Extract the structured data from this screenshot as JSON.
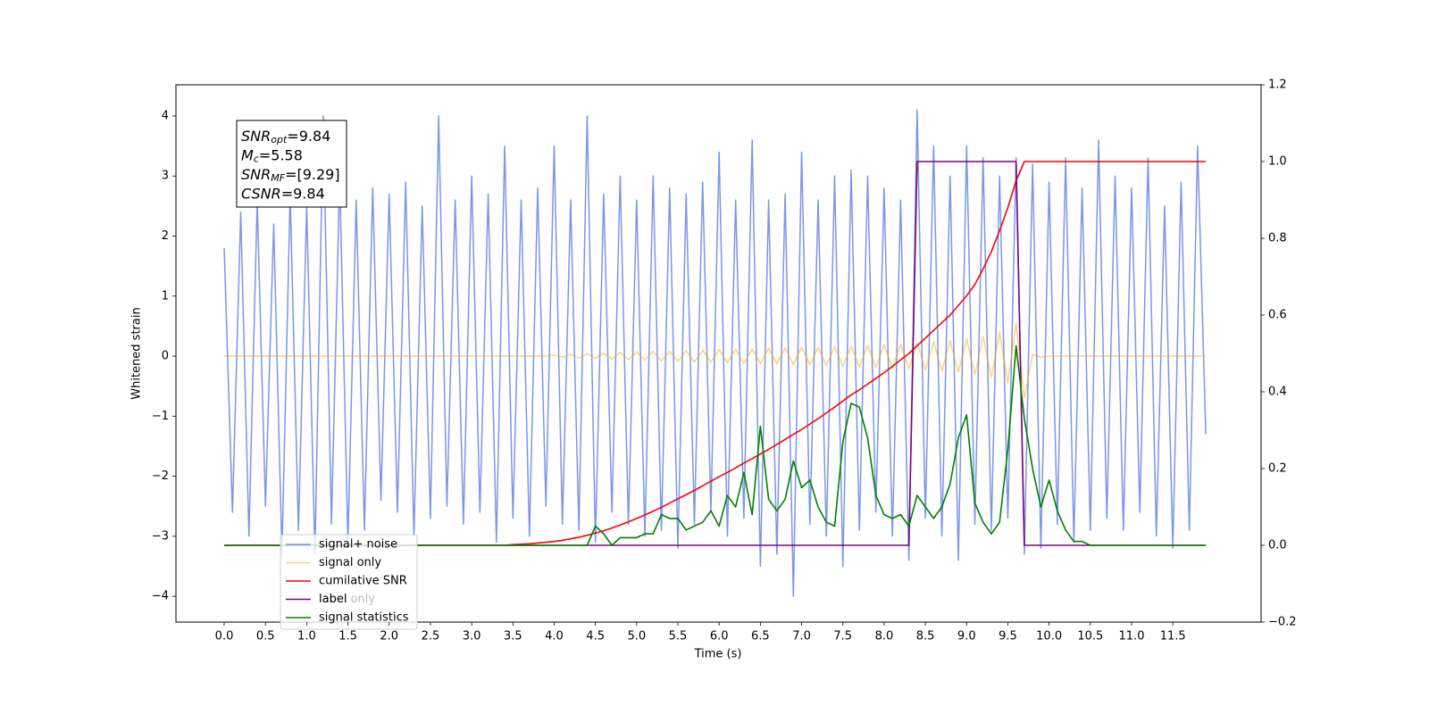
{
  "chart_data": {
    "type": "line",
    "xlabel": "Time (s)",
    "ylabel": "Whitened strain",
    "xlim": [
      -0.585,
      12.57
    ],
    "ylim": [
      -4.43,
      4.52
    ],
    "y2lim": [
      -0.2,
      1.2
    ],
    "xticks": [
      {
        "value": 0,
        "label": "0.0"
      },
      0.5,
      {
        "value": 1,
        "label": "1.0"
      },
      1.5,
      {
        "value": 2,
        "label": "2.0"
      },
      2.5,
      {
        "value": 3,
        "label": "3.0"
      },
      3.5,
      {
        "value": 4,
        "label": "4.0"
      },
      4.5,
      {
        "value": 5,
        "label": "5.0"
      },
      5.5,
      {
        "value": 6,
        "label": "6.0"
      },
      6.5,
      {
        "value": 7,
        "label": "7.0"
      },
      7.5,
      {
        "value": 8,
        "label": "8.0"
      },
      8.5,
      {
        "value": 9,
        "label": "9.0"
      },
      9.5,
      {
        "value": 10,
        "label": "10.0"
      },
      10.5,
      {
        "value": 11,
        "label": "11.0"
      },
      11.5
    ],
    "yticks": [
      {
        "value": -4,
        "label": "−4"
      },
      {
        "value": -3,
        "label": "−3"
      },
      {
        "value": -2,
        "label": "−2"
      },
      {
        "value": -1,
        "label": "−1"
      },
      0,
      1,
      2,
      3,
      4
    ],
    "y2ticks": [
      {
        "value": -0.2,
        "label": "−0.2"
      },
      {
        "value": 0,
        "label": "0.0"
      },
      0.2,
      0.4,
      0.6,
      0.8,
      {
        "value": 1,
        "label": "1.0"
      },
      1.2
    ],
    "legend": "lower left",
    "legend_hidden_entry": "label only",
    "annotation_lines": [
      {
        "name": "SNR",
        "sub": "opt",
        "text": "=9.84"
      },
      {
        "name": "M",
        "sub": "c",
        "text": "=5.58"
      },
      {
        "name": "SNR",
        "sub": "MF",
        "text": "=[9.29]"
      },
      {
        "name": "CSNR",
        "text": "=9.84"
      }
    ],
    "x": [
      0,
      0.1,
      0.2,
      0.3,
      0.4,
      0.5,
      0.6,
      0.7,
      0.8,
      0.9,
      1,
      1.1,
      1.2,
      1.3,
      1.4,
      1.5,
      1.6,
      1.7,
      1.8,
      1.9,
      2,
      2.1,
      2.2,
      2.3,
      2.4,
      2.5,
      2.6,
      2.7,
      2.8,
      2.9,
      3,
      3.1,
      3.2,
      3.3,
      3.4,
      3.5,
      3.6,
      3.7,
      3.8,
      3.9,
      4,
      4.1,
      4.2,
      4.3,
      4.4,
      4.5,
      4.6,
      4.7,
      4.8,
      4.9,
      5,
      5.1,
      5.2,
      5.3,
      5.4,
      5.5,
      5.6,
      5.7,
      5.8,
      5.9,
      6,
      6.1,
      6.2,
      6.3,
      6.4,
      6.5,
      6.6,
      6.7,
      6.8,
      6.9,
      7,
      7.1,
      7.2,
      7.3,
      7.4,
      7.5,
      7.6,
      7.7,
      7.8,
      7.9,
      8,
      8.1,
      8.2,
      8.3,
      8.4,
      8.5,
      8.6,
      8.7,
      8.8,
      8.9,
      9,
      9.1,
      9.2,
      9.3,
      9.4,
      9.5,
      9.6,
      9.7,
      9.8,
      9.9,
      10,
      10.1,
      10.2,
      10.3,
      10.4,
      10.5,
      10.6,
      10.7,
      10.8,
      10.9,
      11,
      11.1,
      11.2,
      11.3,
      11.4,
      11.5,
      11.6,
      11.7,
      11.8,
      11.9
    ],
    "series": [
      {
        "name": "signal+ noise",
        "color": "#4169e1",
        "alpha": 0.7,
        "axis": "y",
        "values": [
          1.8,
          -2.6,
          2.4,
          -3.0,
          2.6,
          -2.5,
          2.2,
          -3.3,
          2.7,
          -2.9,
          2.5,
          -3.3,
          4.0,
          -2.8,
          3.0,
          -3.1,
          2.6,
          -2.9,
          2.8,
          -2.4,
          2.7,
          -2.6,
          2.9,
          -3.0,
          2.5,
          -2.7,
          4.0,
          -2.5,
          2.6,
          -2.8,
          3.0,
          -2.6,
          2.7,
          -3.1,
          3.5,
          -2.7,
          2.6,
          -3.0,
          2.8,
          -2.5,
          3.5,
          -2.8,
          2.6,
          -2.9,
          4.0,
          -3.1,
          2.7,
          -2.6,
          3.0,
          -2.8,
          2.6,
          -3.0,
          3.0,
          -2.9,
          2.8,
          -3.2,
          2.7,
          -2.8,
          2.9,
          -2.6,
          3.4,
          -3.0,
          2.6,
          -2.7,
          3.6,
          -3.5,
          2.6,
          -3.3,
          2.7,
          -4.0,
          3.4,
          -2.8,
          2.6,
          -3.0,
          3.0,
          -3.5,
          3.1,
          -2.9,
          3.0,
          -2.6,
          2.8,
          -3.0,
          2.6,
          -3.4,
          4.1,
          -2.7,
          3.5,
          -3.0,
          3.0,
          -3.4,
          3.5,
          -2.8,
          3.3,
          -2.9,
          3.0,
          -2.7,
          3.3,
          -3.3,
          3.2,
          -3.2,
          2.9,
          -2.8,
          3.3,
          -3.1,
          2.8,
          -2.9,
          3.6,
          -2.7,
          3.0,
          -2.9,
          2.8,
          -2.6,
          3.3,
          -3.0,
          2.5,
          -3.2,
          2.9,
          -2.9,
          3.5,
          -1.3
        ]
      },
      {
        "name": "signal only",
        "color": "#ffa500",
        "alpha": 0.5,
        "axis": "y",
        "values": [
          0,
          0,
          0,
          0,
          0,
          0,
          0,
          0,
          0,
          0,
          0,
          0,
          0,
          0,
          0,
          0,
          0,
          0,
          0,
          0,
          0,
          0,
          0,
          0,
          0,
          0,
          0,
          0,
          0,
          0,
          0,
          0,
          0,
          0,
          0,
          0,
          0,
          0,
          0,
          0,
          0.02,
          -0.02,
          0.03,
          -0.03,
          0.04,
          -0.04,
          0.05,
          -0.05,
          0.06,
          -0.06,
          0.07,
          -0.07,
          0.08,
          -0.08,
          0.08,
          -0.09,
          0.09,
          -0.1,
          0.1,
          -0.1,
          0.11,
          -0.11,
          0.12,
          -0.12,
          0.12,
          -0.13,
          0.13,
          -0.13,
          0.14,
          -0.14,
          0.15,
          -0.15,
          0.15,
          -0.16,
          0.16,
          -0.17,
          0.17,
          -0.18,
          0.18,
          -0.19,
          0.19,
          -0.2,
          0.2,
          -0.21,
          0.22,
          -0.23,
          0.24,
          -0.25,
          0.26,
          -0.27,
          0.29,
          -0.31,
          0.33,
          -0.36,
          0.4,
          -0.45,
          0.55,
          -0.7,
          0.03,
          -0.02,
          0,
          0,
          0,
          0,
          0,
          0,
          0,
          0,
          0,
          0,
          0,
          0,
          0,
          0,
          0,
          0,
          0,
          0,
          0,
          0
        ]
      },
      {
        "name": "cumilative SNR",
        "color": "#ff0000",
        "alpha": 1,
        "axis": "y2",
        "values": [
          0,
          0,
          0,
          0,
          0,
          0,
          0,
          0,
          0,
          0,
          0,
          0,
          0,
          0,
          0,
          0,
          0,
          0,
          0,
          0,
          0,
          0,
          0,
          0,
          0,
          0,
          0,
          0,
          0,
          0,
          0,
          0,
          0,
          0,
          0,
          0.002,
          0.003,
          0.004,
          0.006,
          0.008,
          0.01,
          0.013,
          0.017,
          0.021,
          0.026,
          0.032,
          0.038,
          0.045,
          0.053,
          0.061,
          0.07,
          0.079,
          0.089,
          0.099,
          0.11,
          0.121,
          0.132,
          0.143,
          0.155,
          0.167,
          0.179,
          0.19,
          0.202,
          0.214,
          0.226,
          0.238,
          0.25,
          0.263,
          0.276,
          0.289,
          0.302,
          0.316,
          0.33,
          0.345,
          0.36,
          0.376,
          0.392,
          0.405,
          0.42,
          0.435,
          0.45,
          0.466,
          0.483,
          0.5,
          0.52,
          0.54,
          0.56,
          0.58,
          0.6,
          0.625,
          0.65,
          0.68,
          0.72,
          0.765,
          0.82,
          0.88,
          0.95,
          1.0,
          1.0,
          1.0,
          1.0,
          1.0,
          1.0,
          1.0,
          1.0,
          1.0,
          1.0,
          1.0,
          1.0,
          1.0,
          1.0,
          1.0,
          1.0,
          1.0,
          1.0,
          1.0,
          1.0,
          1.0,
          1.0,
          1.0
        ]
      },
      {
        "name": "label",
        "color": "#800080",
        "alpha": 1,
        "axis": "y2",
        "values": [
          0,
          0,
          0,
          0,
          0,
          0,
          0,
          0,
          0,
          0,
          0,
          0,
          0,
          0,
          0,
          0,
          0,
          0,
          0,
          0,
          0,
          0,
          0,
          0,
          0,
          0,
          0,
          0,
          0,
          0,
          0,
          0,
          0,
          0,
          0,
          0,
          0,
          0,
          0,
          0,
          0,
          0,
          0,
          0,
          0,
          0,
          0,
          0,
          0,
          0,
          0,
          0,
          0,
          0,
          0,
          0,
          0,
          0,
          0,
          0,
          0,
          0,
          0,
          0,
          0,
          0,
          0,
          0,
          0,
          0,
          0,
          0,
          0,
          0,
          0,
          0,
          0,
          0,
          0,
          0,
          0,
          0,
          0,
          0,
          1,
          1,
          1,
          1,
          1,
          1,
          1,
          1,
          1,
          1,
          1,
          1,
          1,
          0,
          0,
          0,
          0,
          0,
          0,
          0,
          0,
          0,
          0,
          0,
          0,
          0,
          0,
          0,
          0,
          0,
          0,
          0,
          0,
          0,
          0,
          0
        ]
      },
      {
        "name": "signal statistics",
        "color": "#008000",
        "alpha": 1,
        "axis": "y2",
        "values": [
          0,
          0,
          0,
          0,
          0,
          0,
          0,
          0,
          0,
          0,
          0,
          0,
          0,
          0,
          0,
          0,
          0,
          0,
          0,
          0,
          0,
          0,
          0,
          0,
          0,
          0,
          0,
          0,
          0,
          0,
          0,
          0,
          0,
          0,
          0,
          0,
          0,
          0,
          0,
          0,
          0,
          0,
          0,
          0,
          0,
          0.05,
          0.03,
          0,
          0.02,
          0.02,
          0.02,
          0.03,
          0.03,
          0.08,
          0.07,
          0.07,
          0.04,
          0.05,
          0.06,
          0.09,
          0.05,
          0.13,
          0.1,
          0.19,
          0.08,
          0.31,
          0.12,
          0.09,
          0.12,
          0.22,
          0.15,
          0.17,
          0.1,
          0.06,
          0.05,
          0.27,
          0.37,
          0.36,
          0.28,
          0.13,
          0.08,
          0.07,
          0.08,
          0.05,
          0.13,
          0.1,
          0.07,
          0.1,
          0.16,
          0.28,
          0.34,
          0.11,
          0.06,
          0.03,
          0.06,
          0.25,
          0.52,
          0.33,
          0.2,
          0.1,
          0.17,
          0.09,
          0.04,
          0.01,
          0.01,
          0,
          0,
          0,
          0,
          0,
          0,
          0,
          0,
          0,
          0,
          0,
          0,
          0,
          0,
          0
        ]
      }
    ]
  }
}
